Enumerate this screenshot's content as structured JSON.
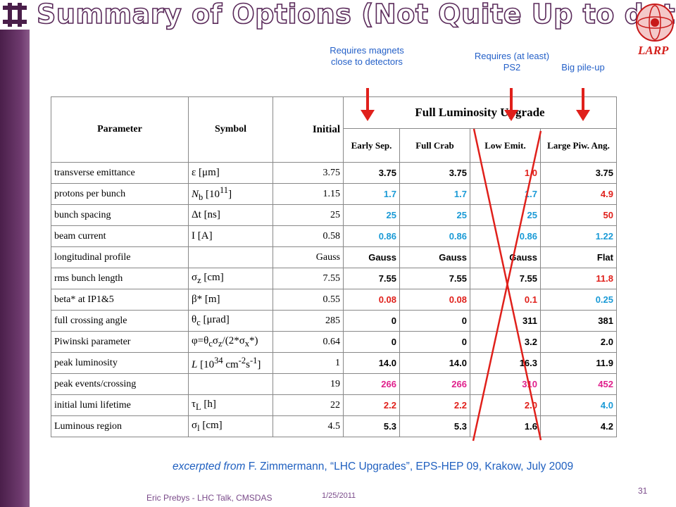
{
  "header": {
    "title": "Summary of Options (Not Quite Up to date)",
    "logo_text": "LARP"
  },
  "annotations": [
    "Requires magnets close to detectors",
    "Requires (at least) PS2",
    "Big pile-up"
  ],
  "table": {
    "columns": [
      "Parameter",
      "Symbol",
      "Initial"
    ],
    "group_header": "Full Luminosity Upgrade",
    "subcolumns": [
      "Early Sep.",
      "Full Crab",
      "Low Emit.",
      "Large Piw. Ang."
    ],
    "rows": [
      {
        "parameter": "transverse emittance",
        "symbol": [
          {
            "text": "ε [μm]"
          }
        ],
        "initial": "3.75",
        "values": [
          "3.75",
          "3.75",
          "1.0",
          "3.75"
        ],
        "colors": [
          "#000000",
          "#000000",
          "#e0201b",
          "#000000"
        ]
      },
      {
        "parameter": "protons per bunch",
        "symbol": [
          {
            "text": "N",
            "style": "italic"
          },
          {
            "text": "b",
            "style": "sub"
          },
          {
            "text": " [10"
          },
          {
            "text": "11",
            "style": "sup"
          },
          {
            "text": "]"
          }
        ],
        "initial": "1.15",
        "values": [
          "1.7",
          "1.7",
          "1.7",
          "4.9"
        ],
        "colors": [
          "#1a9ad6",
          "#1a9ad6",
          "#1a9ad6",
          "#e0201b"
        ]
      },
      {
        "parameter": "bunch spacing",
        "symbol": [
          {
            "text": "Δt [ns]"
          }
        ],
        "initial": "25",
        "values": [
          "25",
          "25",
          "25",
          "50"
        ],
        "colors": [
          "#1a9ad6",
          "#1a9ad6",
          "#1a9ad6",
          "#e0201b"
        ]
      },
      {
        "parameter": "beam current",
        "symbol": [
          {
            "text": "I [A]"
          }
        ],
        "initial": "0.58",
        "values": [
          "0.86",
          "0.86",
          "0.86",
          "1.22"
        ],
        "colors": [
          "#1a9ad6",
          "#1a9ad6",
          "#1a9ad6",
          "#1a9ad6"
        ]
      },
      {
        "parameter": "longitudinal profile",
        "symbol": null,
        "initial": "Gauss",
        "values": [
          "Gauss",
          "Gauss",
          "Gauss",
          "Flat"
        ],
        "colors": [
          "#000000",
          "#000000",
          "#000000",
          "#000000"
        ]
      },
      {
        "parameter": "rms bunch length",
        "symbol": [
          {
            "text": "σ"
          },
          {
            "text": "z",
            "style": "sub"
          },
          {
            "text": " [cm]"
          }
        ],
        "initial": "7.55",
        "values": [
          "7.55",
          "7.55",
          "7.55",
          "11.8"
        ],
        "colors": [
          "#000000",
          "#000000",
          "#000000",
          "#e0201b"
        ]
      },
      {
        "parameter": "beta* at IP1&5",
        "symbol": [
          {
            "text": "β* [m]"
          }
        ],
        "initial": "0.55",
        "values": [
          "0.08",
          "0.08",
          "0.1",
          "0.25"
        ],
        "colors": [
          "#e0201b",
          "#e0201b",
          "#e0201b",
          "#1a9ad6"
        ]
      },
      {
        "parameter": "full crossing angle",
        "symbol": [
          {
            "text": "θ"
          },
          {
            "text": "c",
            "style": "sub"
          },
          {
            "text": " [μrad]"
          }
        ],
        "initial": "285",
        "values": [
          "0",
          "0",
          "311",
          "381"
        ],
        "colors": [
          "#000000",
          "#000000",
          "#000000",
          "#000000"
        ]
      },
      {
        "parameter": "Piwinski parameter",
        "symbol": [
          {
            "text": "φ=θ"
          },
          {
            "text": "c",
            "style": "sub"
          },
          {
            "text": "σ"
          },
          {
            "text": "z",
            "style": "sub"
          },
          {
            "text": "/(2*σ"
          },
          {
            "text": "x",
            "style": "sub"
          },
          {
            "text": "*)"
          }
        ],
        "initial": "0.64",
        "values": [
          "0",
          "0",
          "3.2",
          "2.0"
        ],
        "colors": [
          "#000000",
          "#000000",
          "#000000",
          "#000000"
        ]
      },
      {
        "parameter": "peak luminosity",
        "symbol": [
          {
            "text": "L",
            "style": "italic"
          },
          {
            "text": " [10"
          },
          {
            "text": "34",
            "style": "sup"
          },
          {
            "text": " cm"
          },
          {
            "text": "-2",
            "style": "sup"
          },
          {
            "text": "s"
          },
          {
            "text": "-1",
            "style": "sup"
          },
          {
            "text": "]"
          }
        ],
        "initial": "1",
        "values": [
          "14.0",
          "14.0",
          "16.3",
          "11.9"
        ],
        "colors": [
          "#000000",
          "#000000",
          "#000000",
          "#000000"
        ]
      },
      {
        "parameter": "peak events/crossing",
        "symbol": null,
        "initial": "19",
        "values": [
          "266",
          "266",
          "310",
          "452"
        ],
        "colors": [
          "#e0208c",
          "#e0208c",
          "#e0208c",
          "#e0208c"
        ]
      },
      {
        "parameter": "initial lumi lifetime",
        "symbol": [
          {
            "text": "τ"
          },
          {
            "text": "L",
            "style": "sub"
          },
          {
            "text": " [h]"
          }
        ],
        "initial": "22",
        "values": [
          "2.2",
          "2.2",
          "2.0",
          "4.0"
        ],
        "colors": [
          "#e0201b",
          "#e0201b",
          "#e0201b",
          "#1a9ad6"
        ]
      },
      {
        "parameter": "Luminous region",
        "symbol": [
          {
            "text": "σ"
          },
          {
            "text": "l",
            "style": "sub"
          },
          {
            "text": " [cm]"
          }
        ],
        "initial": "4.5",
        "values": [
          "5.3",
          "5.3",
          "1.6",
          "4.2"
        ],
        "colors": [
          "#000000",
          "#000000",
          "#000000",
          "#000000"
        ]
      }
    ]
  },
  "citation": {
    "lead": "excerpted from",
    "text": "F. Zimmermann, “LHC Upgrades”, EPS-HEP 09, Krakow, July 2009"
  },
  "footer": {
    "author": "Eric Prebys - LHC Talk, CMSDAS",
    "date": "1/25/2011",
    "page": "31"
  }
}
